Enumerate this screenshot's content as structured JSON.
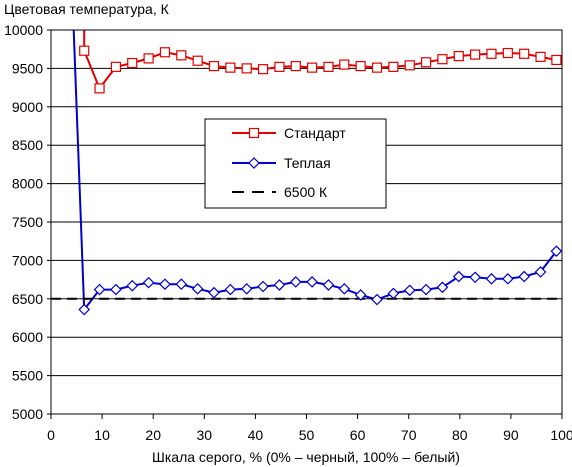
{
  "chart_data": {
    "type": "line",
    "title": "",
    "ylabel": "Цветовая температура, К",
    "xlabel": "Шкала серого, % (0% – черный, 100% – белый)",
    "xlim": [
      0,
      100
    ],
    "ylim": [
      5000,
      10000
    ],
    "x_ticks": [
      "0",
      "10",
      "20",
      "30",
      "40",
      "50",
      "60",
      "70",
      "80",
      "90",
      "100"
    ],
    "y_ticks": [
      "5000",
      "5500",
      "6000",
      "6500",
      "7000",
      "7500",
      "8000",
      "8500",
      "9000",
      "9500",
      "10000"
    ],
    "grid": "horizontal",
    "legend_position": "center",
    "series": [
      {
        "name": "Стандарт",
        "color": "#e00000",
        "marker": "square",
        "line": "solid",
        "points": [
          [
            6.5,
            10800
          ],
          [
            6.5,
            9730
          ],
          [
            9.5,
            9240
          ],
          [
            12.7,
            9520
          ],
          [
            15.9,
            9570
          ],
          [
            19.1,
            9630
          ],
          [
            22.3,
            9710
          ],
          [
            25.5,
            9670
          ],
          [
            28.7,
            9600
          ],
          [
            31.9,
            9530
          ],
          [
            35.1,
            9510
          ],
          [
            38.3,
            9500
          ],
          [
            41.5,
            9490
          ],
          [
            44.7,
            9520
          ],
          [
            47.9,
            9530
          ],
          [
            51.1,
            9510
          ],
          [
            54.3,
            9520
          ],
          [
            57.4,
            9550
          ],
          [
            60.6,
            9530
          ],
          [
            63.8,
            9510
          ],
          [
            67.0,
            9520
          ],
          [
            70.2,
            9540
          ],
          [
            73.4,
            9580
          ],
          [
            76.6,
            9620
          ],
          [
            79.8,
            9660
          ],
          [
            83.0,
            9680
          ],
          [
            86.2,
            9690
          ],
          [
            89.4,
            9700
          ],
          [
            92.6,
            9690
          ],
          [
            95.8,
            9650
          ],
          [
            98.9,
            9610
          ]
        ]
      },
      {
        "name": "Теплая",
        "color": "#0000cc",
        "marker": "diamond",
        "line": "solid",
        "points": [
          [
            4.0,
            10800
          ],
          [
            6.5,
            6360
          ],
          [
            9.5,
            6620
          ],
          [
            12.7,
            6620
          ],
          [
            15.9,
            6670
          ],
          [
            19.1,
            6710
          ],
          [
            22.3,
            6690
          ],
          [
            25.5,
            6690
          ],
          [
            28.7,
            6630
          ],
          [
            31.9,
            6580
          ],
          [
            35.1,
            6620
          ],
          [
            38.3,
            6630
          ],
          [
            41.5,
            6660
          ],
          [
            44.7,
            6680
          ],
          [
            47.9,
            6720
          ],
          [
            51.1,
            6720
          ],
          [
            54.3,
            6680
          ],
          [
            57.4,
            6630
          ],
          [
            60.6,
            6550
          ],
          [
            63.8,
            6490
          ],
          [
            67.0,
            6570
          ],
          [
            70.2,
            6610
          ],
          [
            73.4,
            6620
          ],
          [
            76.6,
            6650
          ],
          [
            79.8,
            6790
          ],
          [
            83.0,
            6780
          ],
          [
            86.2,
            6760
          ],
          [
            89.4,
            6760
          ],
          [
            92.6,
            6790
          ],
          [
            95.8,
            6850
          ],
          [
            98.9,
            7120
          ]
        ]
      },
      {
        "name": "6500 К",
        "color": "#000000",
        "marker": "none",
        "line": "dashed",
        "points": [
          [
            0,
            6500
          ],
          [
            100,
            6500
          ]
        ]
      }
    ]
  }
}
